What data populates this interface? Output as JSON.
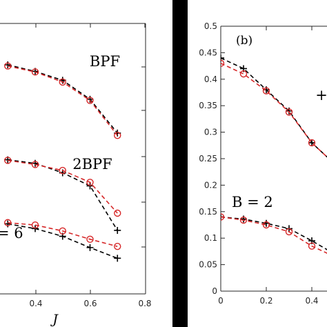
{
  "chart_data": [
    {
      "type": "line",
      "panel": "left (cropped)",
      "title": "",
      "xlabel": "J",
      "ylabel": "",
      "xlim": [
        0,
        0.8
      ],
      "xticks": [
        "0.4",
        "0.6",
        "0.8"
      ],
      "x": [
        0.3,
        0.4,
        0.5,
        0.6,
        0.7
      ],
      "annotations": [
        "BPF",
        "2BPF",
        "= 6"
      ],
      "marker_colors": {
        "plus": "#000000",
        "circle": "#d62728"
      },
      "series": [
        {
          "marker": "plus",
          "values": [
            0.4455,
            0.44,
            0.4325,
            0.4165,
            0.388
          ]
        },
        {
          "marker": "circle",
          "values": [
            0.4445,
            0.4395,
            0.431,
            0.4155,
            0.386
          ]
        },
        {
          "marker": "plus",
          "values": [
            0.3655,
            0.3625,
            0.3545,
            0.3435,
            0.306
          ]
        },
        {
          "marker": "circle",
          "values": [
            0.365,
            0.3615,
            0.3565,
            0.3465,
            0.3205
          ]
        },
        {
          "marker": "plus",
          "values": [
            0.3115,
            0.3075,
            0.301,
            0.2915,
            0.2825
          ]
        },
        {
          "marker": "circle",
          "values": [
            0.3125,
            0.3105,
            0.3055,
            0.2985,
            0.2925
          ]
        }
      ]
    },
    {
      "type": "line",
      "panel": "right (cropped)",
      "label": "(b)",
      "xlabel": "",
      "ylabel": "",
      "ylim": [
        0,
        0.5
      ],
      "yticks": [
        "0",
        "0.05",
        "0.1",
        "0.15",
        "0.2",
        "0.25",
        "0.3",
        "0.35",
        "0.4",
        "0.45",
        "0.5"
      ],
      "xticks": [
        "0",
        "0.2",
        "0.4"
      ],
      "annotations": [
        "B = 2",
        "+"
      ],
      "marker_colors": {
        "plus": "#000000",
        "circle": "#d62728"
      },
      "series": [
        {
          "marker": "plus",
          "x": [
            0,
            0.1,
            0.2,
            0.3,
            0.4,
            0.5
          ],
          "values": [
            0.44,
            0.42,
            0.38,
            0.34,
            0.28,
            0.24
          ]
        },
        {
          "marker": "circle",
          "x": [
            0,
            0.1,
            0.2,
            0.3,
            0.4,
            0.5
          ],
          "values": [
            0.43,
            0.41,
            0.378,
            0.338,
            0.28,
            0.24
          ]
        },
        {
          "marker": "plus",
          "x": [
            0,
            0.1,
            0.2,
            0.3,
            0.4,
            0.5
          ],
          "values": [
            0.14,
            0.136,
            0.128,
            0.118,
            0.095,
            0.07
          ]
        },
        {
          "marker": "circle",
          "x": [
            0,
            0.1,
            0.2,
            0.3,
            0.4,
            0.5
          ],
          "values": [
            0.14,
            0.134,
            0.125,
            0.112,
            0.085,
            0.065
          ]
        }
      ]
    }
  ]
}
